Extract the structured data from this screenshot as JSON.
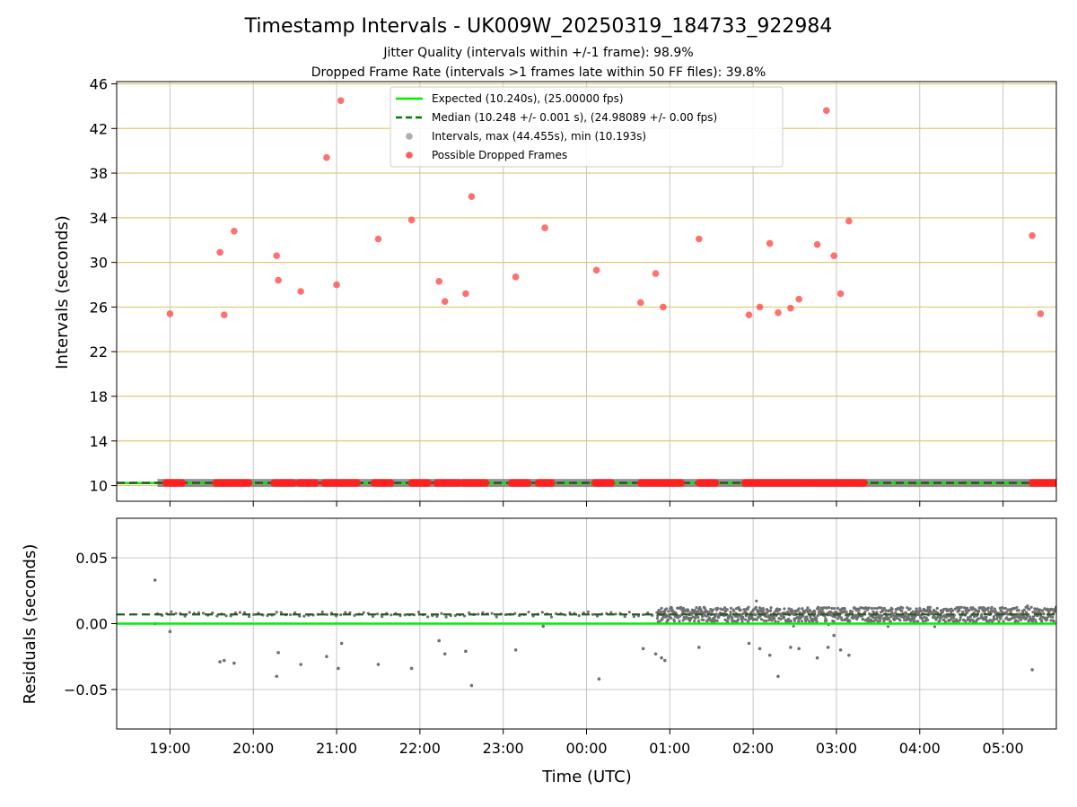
{
  "chart_data": {
    "type": "scatter",
    "title": "Timestamp Intervals - UK009W_20250319_184733_922984",
    "subtitle_lines": [
      "Jitter Quality (intervals within +/-1 frame): 98.9%",
      "Dropped Frame Rate (intervals >1 frames late within 50 FF files): 39.8%"
    ],
    "xlabel": "Time (UTC)",
    "x_tick_labels": [
      "19:00",
      "20:00",
      "21:00",
      "22:00",
      "23:00",
      "00:00",
      "01:00",
      "02:00",
      "03:00",
      "04:00",
      "05:00"
    ],
    "x_tick_hours": [
      19,
      20,
      21,
      22,
      23,
      24,
      25,
      26,
      27,
      28,
      29
    ],
    "xlim_hours": [
      18.36,
      29.64
    ],
    "top_panel": {
      "ylabel": "Intervals (seconds)",
      "ylim": [
        8.6,
        46.2
      ],
      "yticks": [
        10,
        14,
        18,
        22,
        26,
        30,
        34,
        38,
        42,
        46
      ],
      "ytick_labels": [
        "10",
        "14",
        "18",
        "22",
        "26",
        "30",
        "34",
        "38",
        "42",
        "46"
      ],
      "grid_color": "#e0c878",
      "expected_value": 10.24,
      "median_value": 10.248,
      "baseline_start_hour": 18.85,
      "dropped_clusters_hours": [
        [
          18.95,
          19.15
        ],
        [
          19.55,
          19.95
        ],
        [
          20.25,
          20.5
        ],
        [
          20.55,
          20.75
        ],
        [
          20.85,
          21.25
        ],
        [
          21.45,
          21.65
        ],
        [
          21.9,
          22.1
        ],
        [
          22.2,
          22.48
        ],
        [
          22.52,
          22.8
        ],
        [
          23.1,
          23.3
        ],
        [
          23.42,
          23.6
        ],
        [
          24.1,
          24.3
        ],
        [
          24.65,
          25.15
        ],
        [
          25.35,
          25.55
        ],
        [
          25.9,
          26.7
        ],
        [
          26.72,
          27.35
        ],
        [
          29.35,
          29.64
        ]
      ],
      "dropped_points": [
        {
          "t": 19.0,
          "y": 25.4
        },
        {
          "t": 19.65,
          "y": 25.3
        },
        {
          "t": 19.6,
          "y": 30.9
        },
        {
          "t": 19.77,
          "y": 32.8
        },
        {
          "t": 20.28,
          "y": 30.6
        },
        {
          "t": 20.3,
          "y": 28.4
        },
        {
          "t": 20.57,
          "y": 27.4
        },
        {
          "t": 20.88,
          "y": 39.4
        },
        {
          "t": 21.0,
          "y": 28.0
        },
        {
          "t": 21.05,
          "y": 44.5
        },
        {
          "t": 21.5,
          "y": 32.1
        },
        {
          "t": 21.9,
          "y": 33.8
        },
        {
          "t": 22.23,
          "y": 28.3
        },
        {
          "t": 22.3,
          "y": 26.5
        },
        {
          "t": 22.55,
          "y": 27.2
        },
        {
          "t": 22.62,
          "y": 35.9
        },
        {
          "t": 23.15,
          "y": 28.7
        },
        {
          "t": 23.5,
          "y": 33.1
        },
        {
          "t": 24.12,
          "y": 29.3
        },
        {
          "t": 24.65,
          "y": 26.4
        },
        {
          "t": 24.83,
          "y": 29.0
        },
        {
          "t": 24.92,
          "y": 26.0
        },
        {
          "t": 25.35,
          "y": 32.1
        },
        {
          "t": 25.95,
          "y": 25.3
        },
        {
          "t": 26.08,
          "y": 26.0
        },
        {
          "t": 26.2,
          "y": 31.7
        },
        {
          "t": 26.3,
          "y": 25.5
        },
        {
          "t": 26.45,
          "y": 25.9
        },
        {
          "t": 26.55,
          "y": 26.7
        },
        {
          "t": 26.77,
          "y": 31.6
        },
        {
          "t": 26.88,
          "y": 43.6
        },
        {
          "t": 26.97,
          "y": 30.6
        },
        {
          "t": 27.05,
          "y": 27.2
        },
        {
          "t": 27.15,
          "y": 33.7
        },
        {
          "t": 29.35,
          "y": 32.4
        },
        {
          "t": 29.45,
          "y": 25.4
        }
      ]
    },
    "bottom_panel": {
      "ylabel": "Residuals (seconds)",
      "ylim": [
        -0.08,
        0.08
      ],
      "yticks": [
        -0.05,
        0.0,
        0.05
      ],
      "ytick_labels": [
        "−0.05",
        "0.00",
        "0.05"
      ],
      "expected_residual": 0.0,
      "median_residual": 0.007,
      "cluster_start_hour": 24.85,
      "outlier_points": [
        {
          "t": 18.82,
          "y": 0.033
        },
        {
          "t": 19.0,
          "y": -0.006
        },
        {
          "t": 19.6,
          "y": -0.029
        },
        {
          "t": 19.65,
          "y": -0.028
        },
        {
          "t": 19.77,
          "y": -0.03
        },
        {
          "t": 20.28,
          "y": -0.04
        },
        {
          "t": 20.3,
          "y": -0.022
        },
        {
          "t": 20.57,
          "y": -0.031
        },
        {
          "t": 20.88,
          "y": -0.025
        },
        {
          "t": 21.02,
          "y": -0.034
        },
        {
          "t": 21.06,
          "y": -0.015
        },
        {
          "t": 21.5,
          "y": -0.031
        },
        {
          "t": 21.9,
          "y": -0.034
        },
        {
          "t": 22.23,
          "y": -0.013
        },
        {
          "t": 22.3,
          "y": -0.023
        },
        {
          "t": 22.55,
          "y": -0.021
        },
        {
          "t": 22.62,
          "y": -0.047
        },
        {
          "t": 23.15,
          "y": -0.02
        },
        {
          "t": 24.15,
          "y": -0.042
        },
        {
          "t": 24.68,
          "y": -0.019
        },
        {
          "t": 24.83,
          "y": -0.023
        },
        {
          "t": 24.9,
          "y": -0.026
        },
        {
          "t": 24.94,
          "y": -0.028
        },
        {
          "t": 25.35,
          "y": -0.018
        },
        {
          "t": 25.95,
          "y": -0.015
        },
        {
          "t": 26.08,
          "y": -0.019
        },
        {
          "t": 26.2,
          "y": -0.024
        },
        {
          "t": 26.3,
          "y": -0.04
        },
        {
          "t": 26.45,
          "y": -0.018
        },
        {
          "t": 26.55,
          "y": -0.019
        },
        {
          "t": 26.77,
          "y": -0.026
        },
        {
          "t": 26.9,
          "y": -0.018
        },
        {
          "t": 26.97,
          "y": -0.009
        },
        {
          "t": 27.05,
          "y": -0.02
        },
        {
          "t": 27.15,
          "y": -0.024
        },
        {
          "t": 29.35,
          "y": -0.035
        },
        {
          "t": 23.48,
          "y": -0.002
        },
        {
          "t": 18.82,
          "y": 0.0
        }
      ]
    },
    "legend": {
      "placement": "top-center",
      "entries": [
        {
          "label": "Expected (10.240s), (25.00000 fps)",
          "style": "solid-line",
          "color": "#00ee00"
        },
        {
          "label": "Median (10.248 +/- 0.001 s), (24.98089 +/- 0.00 fps)",
          "style": "dashed-line",
          "color": "#007a00"
        },
        {
          "label": "Intervals, max (44.455s), min (10.193s)",
          "style": "marker",
          "color": "#a0a0a0"
        },
        {
          "label": "Possible Dropped Frames",
          "style": "marker",
          "color": "#ff4040"
        }
      ]
    }
  }
}
